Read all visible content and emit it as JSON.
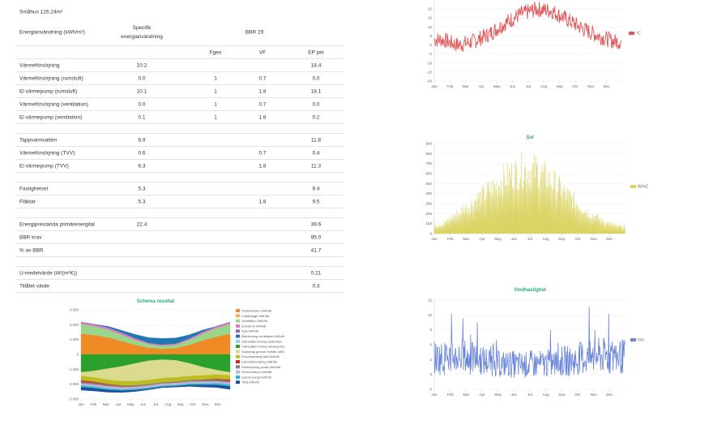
{
  "table": {
    "building": "Småhus 126.24m²",
    "header": {
      "label": "Energianvändning (kWh/m²)",
      "spec": "Specifik energianvändning",
      "bbr": "BBR 29",
      "fgeo": "Fgeo",
      "vf": "VF",
      "ep": "EP pet"
    },
    "rows": [
      {
        "label": "Värmeförsörjning",
        "spec": "10.2",
        "fgeo": "",
        "vf": "",
        "ep": "18.4"
      },
      {
        "label": "Värmeförsörjning (rumsluft)",
        "spec": "0.0",
        "fgeo": "1",
        "vf": "0.7",
        "ep": "0.0"
      },
      {
        "label": "El värmepump (rumsluft)",
        "spec": "10.1",
        "fgeo": "1",
        "vf": "1.8",
        "ep": "18.1"
      },
      {
        "label": "Värmeförsörjning (ventilation)",
        "spec": "0.0",
        "fgeo": "1",
        "vf": "0.7",
        "ep": "0.0"
      },
      {
        "label": "El värmepump (ventilation)",
        "spec": "0.1",
        "fgeo": "1",
        "vf": "1.8",
        "ep": "0.2"
      },
      {
        "sep": true
      },
      {
        "label": "Tappvarmvatten",
        "spec": "6.9",
        "fgeo": "",
        "vf": "",
        "ep": "11.8"
      },
      {
        "label": "Värmeförsörjning (TVV)",
        "spec": "0.6",
        "fgeo": "",
        "vf": "0.7",
        "ep": "0.4"
      },
      {
        "label": "El värmepump (TVV)",
        "spec": "6.3",
        "fgeo": "",
        "vf": "1.8",
        "ep": "11.3"
      },
      {
        "sep": true
      },
      {
        "label": "Fastighetsel",
        "spec": "5.3",
        "fgeo": "",
        "vf": "",
        "ep": "9.4"
      },
      {
        "label": "Fläktar",
        "spec": "5.3",
        "fgeo": "",
        "vf": "1.8",
        "ep": "9.5"
      },
      {
        "sep": true
      },
      {
        "label": "Energiprestanda primärenergital",
        "spec": "22.4",
        "fgeo": "",
        "vf": "",
        "ep": "39.6"
      },
      {
        "label": "BBR krav",
        "spec": "",
        "fgeo": "",
        "vf": "",
        "ep": "95.0"
      },
      {
        "label": "% av BBR",
        "spec": "",
        "fgeo": "",
        "vf": "",
        "ep": "41.7"
      },
      {
        "sep": true
      },
      {
        "label": "U-medelvärde (W/(m²K))",
        "spec": "",
        "fgeo": "",
        "vf": "",
        "ep": "0.21"
      },
      {
        "label": "Tillåtet värde",
        "spec": "",
        "fgeo": "",
        "vf": "",
        "ep": "0.3"
      }
    ]
  },
  "chart_data": [
    {
      "type": "line",
      "title": "",
      "months": [
        "Jan",
        "Feb",
        "Mar",
        "Apr",
        "May",
        "Jun",
        "Jul",
        "Aug",
        "Sep",
        "Oct",
        "Nov",
        "Dec"
      ],
      "series": [
        {
          "name": "°C",
          "color": "#e0585b",
          "monthly_mean": [
            3,
            0,
            2,
            6,
            12,
            17,
            20,
            19,
            14,
            9,
            5,
            2
          ]
        }
      ],
      "yticks": [
        20,
        15,
        10,
        5,
        0,
        -5,
        -10,
        -15,
        -20
      ],
      "ylim": [
        -20,
        25
      ]
    },
    {
      "type": "area",
      "title": "Sol",
      "months": [
        "Jan",
        "Feb",
        "Mar",
        "Apr",
        "May",
        "Jun",
        "Jul",
        "Aug",
        "Sep",
        "Oct",
        "Nov",
        "Dec"
      ],
      "series": [
        {
          "name": "W/m2",
          "color": "#d9d25c",
          "monthly_peak": [
            120,
            260,
            420,
            560,
            720,
            820,
            810,
            650,
            470,
            300,
            170,
            90
          ]
        }
      ],
      "yticks": [
        900,
        800,
        700,
        600,
        500,
        400,
        300,
        200,
        100,
        0
      ],
      "ylim": [
        0,
        900
      ]
    },
    {
      "type": "area",
      "title": "Schema resultat",
      "months": [
        "Jan",
        "Feb",
        "Mar",
        "Apr",
        "May",
        "Jun",
        "Jul",
        "Aug",
        "Sep",
        "Oct",
        "Nov",
        "Dec"
      ],
      "yticks": [
        "3 000",
        "2 000",
        "1 000",
        "0",
        "-1 000",
        "-2 000",
        "-3 000"
      ],
      "ylim": [
        -3000,
        3000
      ],
      "series": [
        {
          "name": "Transmission kWh/år",
          "color": "#f08a24",
          "values": [
            1400,
            1300,
            1150,
            900,
            650,
            450,
            380,
            420,
            650,
            950,
            1200,
            1400
          ]
        },
        {
          "name": "Luftläckage kWh/år",
          "color": "#f3b24f",
          "values": [
            0,
            0,
            0,
            0,
            0,
            0,
            0,
            0,
            0,
            0,
            0,
            0
          ]
        },
        {
          "name": "Ventilation kWh/år",
          "color": "#98d68a",
          "values": [
            650,
            600,
            520,
            420,
            320,
            240,
            210,
            230,
            330,
            460,
            580,
            650
          ]
        },
        {
          "name": "Solvarme kWh/år",
          "color": "#e377c2",
          "values": [
            120,
            130,
            140,
            150,
            120,
            90,
            70,
            80,
            100,
            120,
            120,
            120
          ]
        },
        {
          "name": "Kyla kWh/år",
          "color": "#9467bd",
          "values": [
            0,
            0,
            0,
            0,
            0,
            0,
            0,
            0,
            0,
            0,
            0,
            0
          ]
        },
        {
          "name": "Återvinning ventilation kWh/år",
          "color": "#1f77b4",
          "values": [
            0,
            0,
            80,
            150,
            260,
            350,
            420,
            380,
            240,
            120,
            0,
            0
          ]
        },
        {
          "name": "Värmeåtervinning spillvatten",
          "color": "#8fd0e8",
          "values": [
            0,
            0,
            0,
            0,
            0,
            0,
            0,
            0,
            0,
            0,
            0,
            0
          ]
        },
        {
          "name": "Värmeåtervinning värmepump",
          "color": "#2ca02c",
          "values": [
            -1200,
            -1100,
            -950,
            -800,
            -600,
            -420,
            -350,
            -400,
            -600,
            -850,
            -1050,
            -1200
          ]
        },
        {
          "name": "Solenergi genom fönster kWh",
          "color": "#dbdb8d",
          "values": [
            -250,
            -450,
            -750,
            -1000,
            -1200,
            -1300,
            -1250,
            -1150,
            -850,
            -550,
            -300,
            -200
          ]
        },
        {
          "name": "Processenergi fast kWh/år",
          "color": "#bcbd22",
          "values": [
            -300,
            -300,
            -300,
            -300,
            -300,
            -300,
            -300,
            -300,
            -300,
            -300,
            -300,
            -300
          ]
        },
        {
          "name": "Värmeförsörjning kWh/år",
          "color": "#d62728",
          "values": [
            -80,
            -70,
            -50,
            -20,
            0,
            0,
            0,
            0,
            0,
            -20,
            -50,
            -80
          ]
        },
        {
          "name": "Elförsörjning (svart) kWh/år",
          "color": "#7f7f7f",
          "values": [
            -120,
            -110,
            -100,
            -90,
            -80,
            -70,
            -60,
            -70,
            -80,
            -100,
            -110,
            -120
          ]
        },
        {
          "name": "Personvärme kWh/år",
          "color": "#c5b0d5",
          "values": [
            -150,
            -150,
            -150,
            -150,
            -150,
            -150,
            -150,
            -150,
            -150,
            -150,
            -150,
            -150
          ]
        },
        {
          "name": "Latent energi kWh/år",
          "color": "#17becf",
          "values": [
            -100,
            -100,
            -90,
            -80,
            -70,
            -60,
            -60,
            -60,
            -70,
            -80,
            -90,
            -100
          ]
        },
        {
          "name": "Total kWh/år",
          "color": "#1f4e9e",
          "values": [
            -200,
            -180,
            -150,
            -120,
            -90,
            -70,
            -60,
            -70,
            -100,
            -140,
            -170,
            -200
          ]
        }
      ]
    },
    {
      "type": "line",
      "title": "Vindhastighet",
      "months": [
        "Jan",
        "Feb",
        "Mar",
        "Apr",
        "May",
        "Jun",
        "Jul",
        "Aug",
        "Sep",
        "Oct",
        "Nov",
        "Dec"
      ],
      "series": [
        {
          "name": "m/s",
          "color": "#6a86d8",
          "monthly_mean": [
            4.2,
            4.4,
            4.1,
            3.8,
            3.4,
            3.3,
            3.4,
            3.5,
            3.8,
            4.2,
            4.5,
            4.4
          ]
        }
      ],
      "yticks": [
        12,
        10,
        8,
        6,
        4,
        2,
        0
      ],
      "ylim": [
        0,
        12
      ]
    }
  ]
}
